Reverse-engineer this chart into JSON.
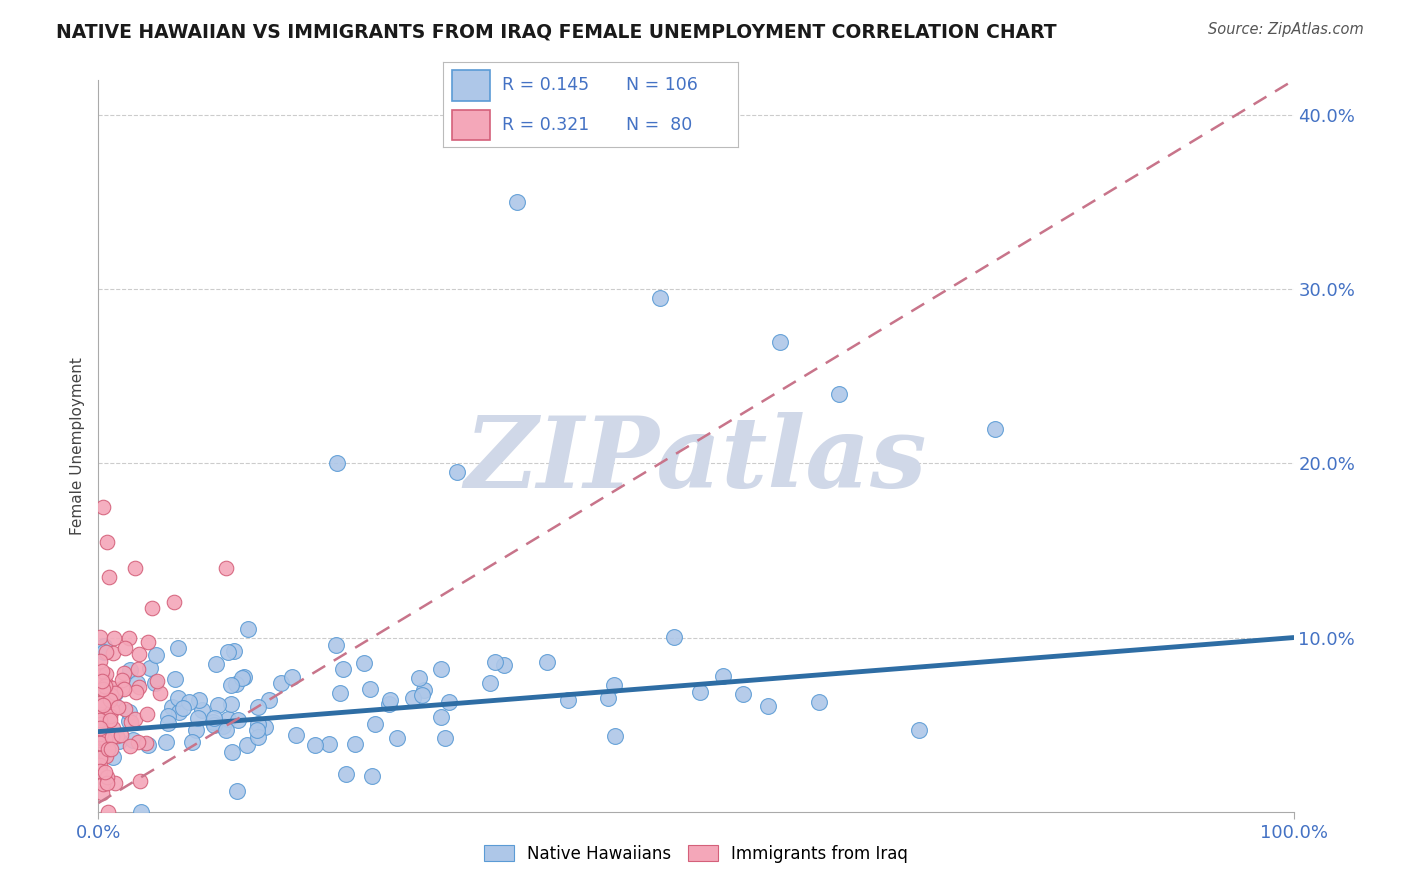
{
  "title": "NATIVE HAWAIIAN VS IMMIGRANTS FROM IRAQ FEMALE UNEMPLOYMENT CORRELATION CHART",
  "source": "Source: ZipAtlas.com",
  "ylabel": "Female Unemployment",
  "blue_color": "#aec7e8",
  "blue_edge_color": "#5b9bd5",
  "pink_color": "#f4a7b9",
  "pink_edge_color": "#d4607a",
  "blue_line_color": "#2e6da4",
  "pink_line_color": "#c8748a",
  "blue_R": 0.145,
  "pink_R": 0.321,
  "blue_N": 106,
  "pink_N": 80,
  "xlim": [
    0.0,
    1.0
  ],
  "ylim": [
    0.0,
    0.42
  ],
  "yticks": [
    0.1,
    0.2,
    0.3,
    0.4
  ],
  "ytick_labels": [
    "10.0%",
    "20.0%",
    "30.0%",
    "40.0%"
  ],
  "watermark_text": "ZIPatlas",
  "watermark_color": "#d0d8e8",
  "grid_color": "#cccccc",
  "axis_color": "#aaaaaa",
  "label_color": "#4472c4",
  "title_color": "#1a1a1a",
  "source_color": "#555555"
}
